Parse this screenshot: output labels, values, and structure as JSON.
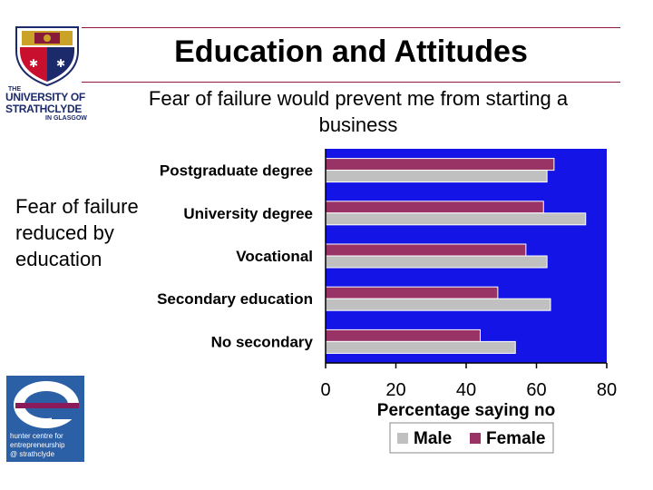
{
  "slide": {
    "title": "Education and Attitudes",
    "subtitle": "Fear of failure would prevent me from starting a business",
    "side_note": "Fear of failure reduced by education"
  },
  "logos": {
    "university": {
      "line1": "THE",
      "line2": "UNIVERSITY OF",
      "line3": "STRATHCLYDE",
      "line4": "IN GLASGOW"
    },
    "hunter": {
      "line1": "hunter centre for",
      "line2": "entrepreneurship",
      "line3": "@ strathclyde"
    }
  },
  "colors": {
    "plot_background": "#1414e6",
    "male": "#c0c0c0",
    "female": "#993366",
    "accent_rule": "#8a1a3a"
  },
  "chart_data": {
    "type": "bar",
    "orientation": "horizontal",
    "categories": [
      "Postgraduate degree",
      "University degree",
      "Vocational",
      "Secondary education",
      "No secondary"
    ],
    "series": [
      {
        "name": "Female",
        "color": "#993366",
        "values": [
          65,
          62,
          57,
          49,
          44
        ]
      },
      {
        "name": "Male",
        "color": "#c0c0c0",
        "values": [
          63,
          74,
          63,
          64,
          54
        ]
      }
    ],
    "xlabel": "Percentage saying no",
    "xlim": [
      0,
      80
    ],
    "xticks": [
      0,
      20,
      40,
      60,
      80
    ],
    "legend_position": "bottom",
    "legend_order": [
      "Male",
      "Female"
    ]
  }
}
